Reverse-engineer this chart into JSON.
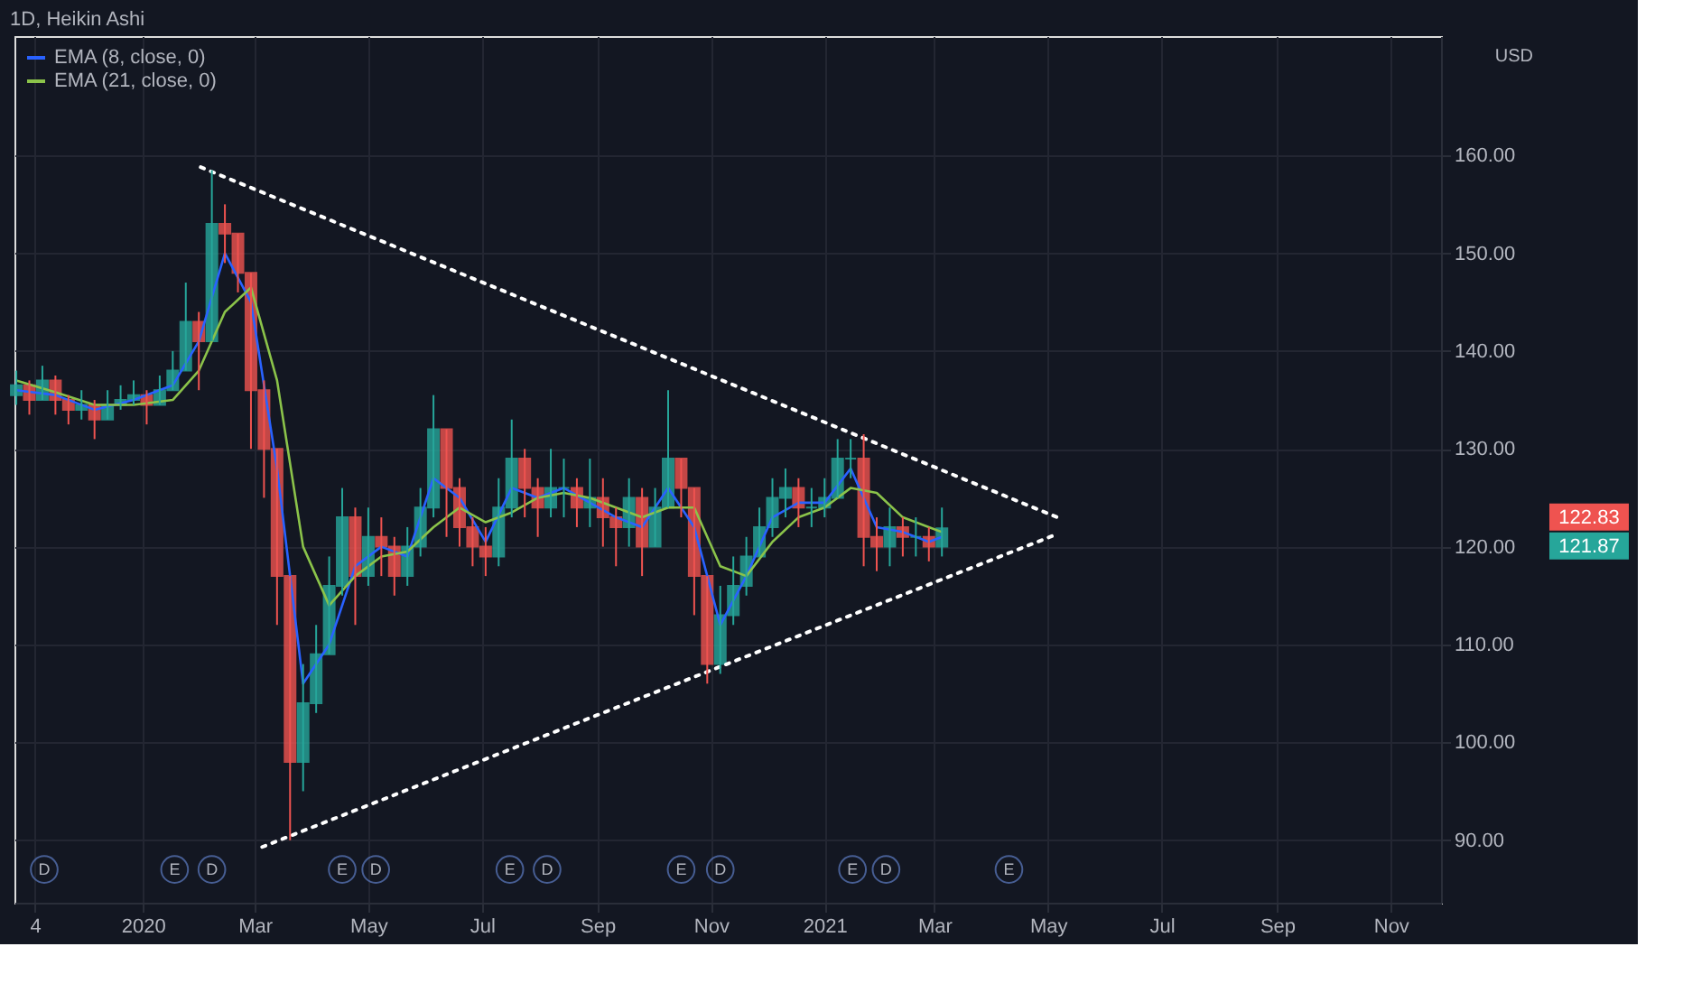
{
  "chart_data": {
    "type": "candlestick",
    "title": "1D, Heikin Ashi",
    "x": [
      "2019-10-25",
      "2019-11-01",
      "2019-11-08",
      "2019-11-15",
      "2019-11-22",
      "2019-11-29",
      "2019-12-06",
      "2019-12-13",
      "2019-12-20",
      "2019-12-27",
      "2020-01-03",
      "2020-01-10",
      "2020-01-17",
      "2020-01-24",
      "2020-01-31",
      "2020-02-07",
      "2020-02-14",
      "2020-02-21",
      "2020-02-28",
      "2020-03-06",
      "2020-03-13",
      "2020-03-20",
      "2020-03-27",
      "2020-04-03",
      "2020-04-10",
      "2020-04-17",
      "2020-04-24",
      "2020-05-01",
      "2020-05-08",
      "2020-05-15",
      "2020-05-22",
      "2020-05-29",
      "2020-06-05",
      "2020-06-12",
      "2020-06-19",
      "2020-06-26",
      "2020-07-03",
      "2020-07-10",
      "2020-07-17",
      "2020-07-24",
      "2020-07-31",
      "2020-08-07",
      "2020-08-14",
      "2020-08-21",
      "2020-08-28",
      "2020-09-04",
      "2020-09-11",
      "2020-09-18",
      "2020-09-25",
      "2020-10-02",
      "2020-10-09",
      "2020-10-16",
      "2020-10-23",
      "2020-10-30",
      "2020-11-06",
      "2020-11-13",
      "2020-11-20",
      "2020-11-27",
      "2020-12-04",
      "2020-12-11",
      "2020-12-18",
      "2020-12-25",
      "2021-01-01",
      "2021-01-08",
      "2021-01-15",
      "2021-01-22",
      "2021-01-29",
      "2021-02-05",
      "2021-02-12",
      "2021-02-19",
      "2021-02-26",
      "2021-03-05"
    ],
    "ohlc": [
      [
        135.5,
        138,
        134.5,
        136.5
      ],
      [
        136.5,
        137,
        133.5,
        135
      ],
      [
        135,
        138.5,
        135,
        137
      ],
      [
        137,
        137.5,
        133.5,
        135
      ],
      [
        135,
        135.5,
        132.5,
        134
      ],
      [
        134,
        136,
        133,
        134.5
      ],
      [
        134.5,
        135,
        131,
        133
      ],
      [
        133,
        136,
        133,
        134.5
      ],
      [
        134.5,
        136.5,
        134,
        135
      ],
      [
        135,
        137,
        134.5,
        135.5
      ],
      [
        135.5,
        136,
        132.5,
        134.5
      ],
      [
        134.5,
        137.5,
        134.5,
        136
      ],
      [
        136,
        140,
        136,
        138
      ],
      [
        138,
        147,
        138,
        143
      ],
      [
        143,
        144,
        136,
        141
      ],
      [
        141,
        158.5,
        141,
        153
      ],
      [
        153,
        155,
        149,
        152
      ],
      [
        152,
        152,
        146,
        148
      ],
      [
        148,
        148,
        130,
        136
      ],
      [
        136,
        137,
        125,
        130
      ],
      [
        130,
        130,
        112,
        117
      ],
      [
        117,
        117,
        90,
        98
      ],
      [
        98,
        108,
        95,
        104
      ],
      [
        104,
        112,
        103,
        109
      ],
      [
        109,
        119,
        109,
        116
      ],
      [
        116,
        126,
        115,
        123
      ],
      [
        123,
        124,
        112,
        117
      ],
      [
        117,
        124,
        116,
        121
      ],
      [
        121,
        123,
        117,
        120
      ],
      [
        120,
        121,
        115,
        117
      ],
      [
        117,
        122,
        116,
        120
      ],
      [
        120,
        126,
        119,
        124
      ],
      [
        124,
        135.5,
        123,
        132
      ],
      [
        132,
        132,
        121,
        126
      ],
      [
        126,
        127,
        120,
        122
      ],
      [
        122,
        123,
        118,
        120
      ],
      [
        120,
        122,
        117,
        119
      ],
      [
        119,
        127,
        118,
        124
      ],
      [
        124,
        133,
        123,
        129
      ],
      [
        129,
        130,
        123,
        126
      ],
      [
        126,
        127,
        121,
        124
      ],
      [
        124,
        130,
        123,
        126
      ],
      [
        126,
        129,
        123,
        126
      ],
      [
        126,
        127,
        122,
        124
      ],
      [
        124,
        129,
        122,
        125
      ],
      [
        125,
        127,
        120,
        123
      ],
      [
        123,
        124,
        118,
        122
      ],
      [
        122,
        127,
        120,
        125
      ],
      [
        125,
        126,
        117,
        120
      ],
      [
        120,
        126,
        120,
        124
      ],
      [
        124,
        136,
        124,
        129
      ],
      [
        129,
        129,
        123,
        126
      ],
      [
        126,
        126,
        113,
        117
      ],
      [
        117,
        117,
        106,
        108
      ],
      [
        108,
        116,
        107,
        113
      ],
      [
        113,
        119,
        112,
        116
      ],
      [
        116,
        121,
        115,
        119
      ],
      [
        119,
        124,
        119,
        122
      ],
      [
        122,
        127,
        121,
        125
      ],
      [
        125,
        128,
        123,
        126
      ],
      [
        126,
        127,
        122,
        124
      ],
      [
        124,
        126,
        122,
        124
      ],
      [
        124,
        127,
        123,
        125
      ],
      [
        125,
        131,
        125,
        129
      ],
      [
        129,
        131,
        127,
        129
      ],
      [
        129,
        131.5,
        118,
        121
      ],
      [
        121,
        123,
        117.5,
        120
      ],
      [
        120,
        124,
        118,
        122
      ],
      [
        122,
        123,
        119,
        121
      ],
      [
        121,
        123,
        119,
        121
      ],
      [
        121,
        122,
        118.5,
        120
      ],
      [
        120,
        124,
        119,
        121.87
      ]
    ],
    "colors": [
      "#26a69a",
      "#ef5350",
      "#26a69a",
      "#ef5350",
      "#ef5350",
      "#26a69a",
      "#ef5350",
      "#26a69a",
      "#26a69a",
      "#26a69a",
      "#ef5350",
      "#26a69a",
      "#26a69a",
      "#26a69a",
      "#ef5350",
      "#26a69a",
      "#ef5350",
      "#ef5350",
      "#ef5350",
      "#ef5350",
      "#ef5350",
      "#ef5350",
      "#26a69a",
      "#26a69a",
      "#26a69a",
      "#26a69a",
      "#ef5350",
      "#26a69a",
      "#ef5350",
      "#ef5350",
      "#26a69a",
      "#26a69a",
      "#26a69a",
      "#ef5350",
      "#ef5350",
      "#ef5350",
      "#ef5350",
      "#26a69a",
      "#26a69a",
      "#ef5350",
      "#ef5350",
      "#26a69a",
      "#26a69a",
      "#ef5350",
      "#26a69a",
      "#ef5350",
      "#ef5350",
      "#26a69a",
      "#ef5350",
      "#26a69a",
      "#26a69a",
      "#ef5350",
      "#ef5350",
      "#ef5350",
      "#26a69a",
      "#26a69a",
      "#26a69a",
      "#26a69a",
      "#26a69a",
      "#26a69a",
      "#ef5350",
      "#26a69a",
      "#26a69a",
      "#26a69a",
      "#26a69a",
      "#ef5350",
      "#ef5350",
      "#26a69a",
      "#ef5350",
      "#26a69a",
      "#ef5350",
      "#26a69a"
    ],
    "series": [
      {
        "type": "line",
        "name": "EMA (8, close, 0)",
        "color": "#2962ff",
        "x": [
          "2019-10-25",
          "2019-11-15",
          "2019-12-06",
          "2019-12-27",
          "2020-01-17",
          "2020-01-31",
          "2020-02-14",
          "2020-02-28",
          "2020-03-13",
          "2020-03-27",
          "2020-04-10",
          "2020-04-24",
          "2020-05-08",
          "2020-05-22",
          "2020-06-05",
          "2020-06-19",
          "2020-07-03",
          "2020-07-17",
          "2020-07-31",
          "2020-08-14",
          "2020-08-28",
          "2020-09-11",
          "2020-09-25",
          "2020-10-09",
          "2020-10-23",
          "2020-11-06",
          "2020-11-20",
          "2020-12-04",
          "2020-12-18",
          "2021-01-01",
          "2021-01-15",
          "2021-01-29",
          "2021-02-12",
          "2021-02-26",
          "2021-03-05"
        ],
        "values": [
          136,
          135.5,
          134,
          135,
          136.5,
          141,
          150,
          145,
          128,
          106,
          110,
          118,
          120,
          119,
          127,
          125,
          120.5,
          126,
          125,
          126,
          124.5,
          123,
          122,
          126,
          122,
          112,
          117,
          123,
          124.5,
          124.5,
          128,
          122,
          121.5,
          120.5,
          121
        ]
      },
      {
        "type": "line",
        "name": "EMA (21, close, 0)",
        "color": "#8bc34a",
        "x": [
          "2019-10-25",
          "2019-11-15",
          "2019-12-06",
          "2019-12-27",
          "2020-01-17",
          "2020-01-31",
          "2020-02-14",
          "2020-02-28",
          "2020-03-13",
          "2020-03-27",
          "2020-04-10",
          "2020-04-24",
          "2020-05-08",
          "2020-05-22",
          "2020-06-05",
          "2020-06-19",
          "2020-07-03",
          "2020-07-17",
          "2020-07-31",
          "2020-08-14",
          "2020-08-28",
          "2020-09-11",
          "2020-09-25",
          "2020-10-09",
          "2020-10-23",
          "2020-11-06",
          "2020-11-20",
          "2020-12-04",
          "2020-12-18",
          "2021-01-01",
          "2021-01-15",
          "2021-01-29",
          "2021-02-12",
          "2021-02-26",
          "2021-03-05"
        ],
        "values": [
          137,
          135.8,
          134.5,
          134.5,
          135,
          138,
          144,
          146.5,
          137,
          120,
          114,
          117,
          119,
          119.5,
          122,
          124,
          122.5,
          123.5,
          125,
          125.5,
          125,
          124,
          123,
          124,
          124,
          118,
          117,
          120.5,
          123,
          124,
          126,
          125.5,
          123,
          122,
          121.5
        ]
      },
      {
        "type": "line",
        "color": "#ffffff",
        "line_style": "dotted",
        "x": [
          "2020-02-01",
          "2021-05-06"
        ],
        "values": [
          158.8,
          123.0
        ]
      },
      {
        "type": "line",
        "color": "#ffffff",
        "line_style": "dotted",
        "x": [
          "2020-03-05",
          "2021-05-06"
        ],
        "values": [
          89.3,
          121.3
        ]
      }
    ],
    "xlim": [
      "2019-10-24",
      "2021-11-28"
    ],
    "xticks": [
      {
        "value": "2019-11-04",
        "label": "4"
      },
      {
        "value": "2020-01-01",
        "label": "2020"
      },
      {
        "value": "2020-03-01",
        "label": "Mar"
      },
      {
        "value": "2020-05-01",
        "label": "May"
      },
      {
        "value": "2020-07-01",
        "label": "Jul"
      },
      {
        "value": "2020-09-01",
        "label": "Sep"
      },
      {
        "value": "2020-11-01",
        "label": "Nov"
      },
      {
        "value": "2021-01-01",
        "label": "2021"
      },
      {
        "value": "2021-03-01",
        "label": "Mar"
      },
      {
        "value": "2021-05-01",
        "label": "May"
      },
      {
        "value": "2021-07-01",
        "label": "Jul"
      },
      {
        "value": "2021-09-01",
        "label": "Sep"
      },
      {
        "value": "2021-11-01",
        "label": "Nov"
      }
    ],
    "ylim": [
      83.6,
      172.2
    ],
    "yticks": [
      {
        "value": 90,
        "label": "90.00"
      },
      {
        "value": 100,
        "label": "100.00"
      },
      {
        "value": 110,
        "label": "110.00"
      },
      {
        "value": 120,
        "label": "120.00"
      },
      {
        "value": 130,
        "label": "130.00"
      },
      {
        "value": 140,
        "label": "140.00"
      },
      {
        "value": 150,
        "label": "150.00"
      },
      {
        "value": 160,
        "label": "160.00"
      }
    ],
    "grid": true,
    "legend": "top left",
    "marker": "none",
    "annotations": [
      "USD",
      "122.83",
      "121.87",
      {
        "text": "D",
        "x": "2019-11-09",
        "y": 87
      },
      {
        "text": "E",
        "x": "2020-01-18",
        "y": 87
      },
      {
        "text": "D",
        "x": "2020-02-07",
        "y": 87
      },
      {
        "text": "E",
        "x": "2020-04-17",
        "y": 87
      },
      {
        "text": "D",
        "x": "2020-05-05",
        "y": 87
      },
      {
        "text": "E",
        "x": "2020-07-16",
        "y": 87
      },
      {
        "text": "D",
        "x": "2020-08-05",
        "y": 87
      },
      {
        "text": "E",
        "x": "2020-10-16",
        "y": 87
      },
      {
        "text": "D",
        "x": "2020-11-06",
        "y": 87
      },
      {
        "text": "E",
        "x": "2021-01-16",
        "y": 87
      },
      {
        "text": "D",
        "x": "2021-02-03",
        "y": 87
      },
      {
        "text": "E",
        "x": "2021-04-10",
        "y": 87
      }
    ]
  }
}
